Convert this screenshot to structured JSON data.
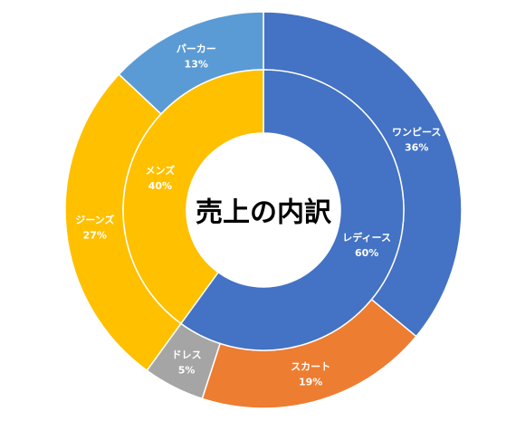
{
  "chart_data": {
    "type": "pie",
    "subtype": "nested-donut",
    "title": "売上の内訳",
    "inner_ring": {
      "categories": [
        "レディース",
        "メンズ"
      ],
      "values": [
        60,
        40
      ],
      "labels": [
        "60%",
        "40%"
      ],
      "colors": [
        "#4472C4",
        "#FFC000"
      ]
    },
    "outer_ring": {
      "categories": [
        "ワンピース",
        "スカート",
        "ドレス",
        "ジーンズ",
        "パーカー"
      ],
      "values": [
        36,
        19,
        5,
        27,
        13
      ],
      "labels": [
        "36%",
        "19%",
        "5%",
        "27%",
        "13%"
      ],
      "colors": [
        "#4472C4",
        "#ED7D31",
        "#A5A5A5",
        "#FFC000",
        "#5B9BD5"
      ]
    },
    "legend": "none"
  }
}
